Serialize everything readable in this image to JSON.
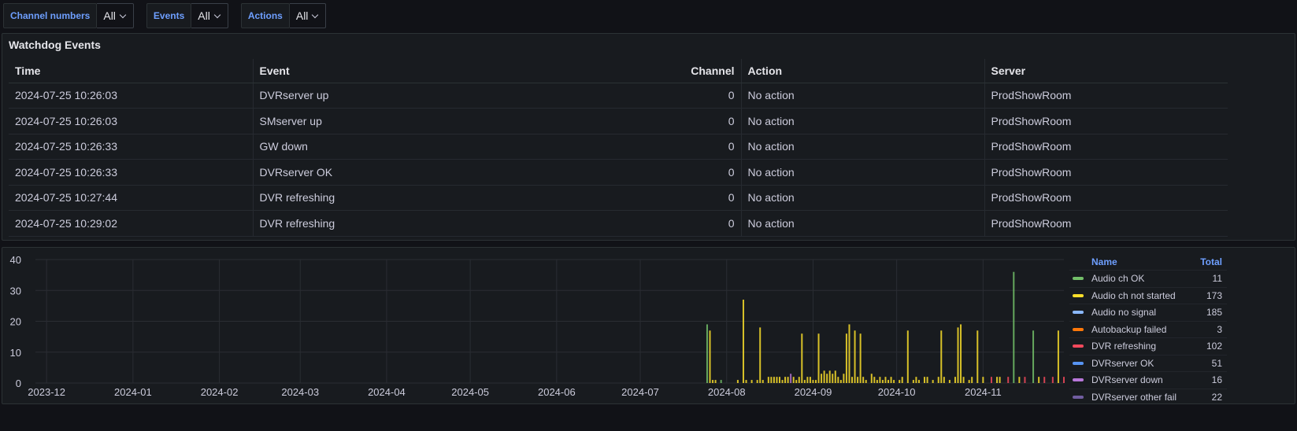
{
  "filters": [
    {
      "label": "Channel numbers",
      "value": "All"
    },
    {
      "label": "Events",
      "value": "All"
    },
    {
      "label": "Actions",
      "value": "All"
    }
  ],
  "table_panel": {
    "title": "Watchdog Events",
    "columns": [
      "Time",
      "Event",
      "Channel",
      "Action",
      "Server"
    ],
    "rows": [
      [
        "2024-07-25 10:26:03",
        "DVRserver up",
        "0",
        "No action",
        "ProdShowRoom"
      ],
      [
        "2024-07-25 10:26:03",
        "SMserver up",
        "0",
        "No action",
        "ProdShowRoom"
      ],
      [
        "2024-07-25 10:26:33",
        "GW down",
        "0",
        "No action",
        "ProdShowRoom"
      ],
      [
        "2024-07-25 10:26:33",
        "DVRserver OK",
        "0",
        "No action",
        "ProdShowRoom"
      ],
      [
        "2024-07-25 10:27:44",
        "DVR refreshing",
        "0",
        "No action",
        "ProdShowRoom"
      ],
      [
        "2024-07-25 10:29:02",
        "DVR refreshing",
        "0",
        "No action",
        "ProdShowRoom"
      ]
    ]
  },
  "legend": {
    "name_header": "Name",
    "total_header": "Total",
    "items": [
      {
        "name": "Audio ch OK",
        "total": "11",
        "color": "#73bf69"
      },
      {
        "name": "Audio ch not started",
        "total": "173",
        "color": "#fade2a"
      },
      {
        "name": "Audio no signal",
        "total": "185",
        "color": "#8ab8ff"
      },
      {
        "name": "Autobackup failed",
        "total": "3",
        "color": "#ff780a"
      },
      {
        "name": "DVR refreshing",
        "total": "102",
        "color": "#f2495c"
      },
      {
        "name": "DVRserver OK",
        "total": "51",
        "color": "#5794f2"
      },
      {
        "name": "DVRserver down",
        "total": "16",
        "color": "#b877d9"
      },
      {
        "name": "DVRserver other fail",
        "total": "22",
        "color": "#705da0"
      }
    ]
  },
  "chart_data": {
    "type": "bar",
    "ylim": [
      0,
      40
    ],
    "y_ticks": [
      0,
      10,
      20,
      30,
      40
    ],
    "x_ticks": [
      "2023-12",
      "2024-01",
      "2024-02",
      "2024-03",
      "2024-04",
      "2024-05",
      "2024-06",
      "2024-07",
      "2024-08",
      "2024-09",
      "2024-10",
      "2024-11"
    ],
    "grid": true,
    "legend_position": "right",
    "x_range": [
      "2023-11-27",
      "2024-11-30"
    ],
    "bars": [
      {
        "date": "2024-07-25",
        "value": 19,
        "color": "#73bf69"
      },
      {
        "date": "2024-07-26",
        "value": 17,
        "color": "#fade2a"
      },
      {
        "date": "2024-07-27",
        "value": 1,
        "color": "#fade2a"
      },
      {
        "date": "2024-07-28",
        "value": 1,
        "color": "#fade2a"
      },
      {
        "date": "2024-07-30",
        "value": 1,
        "color": "#73bf69"
      },
      {
        "date": "2024-08-05",
        "value": 1,
        "color": "#fade2a"
      },
      {
        "date": "2024-08-07",
        "value": 27,
        "color": "#fade2a"
      },
      {
        "date": "2024-08-08",
        "value": 1,
        "color": "#fade2a"
      },
      {
        "date": "2024-08-10",
        "value": 1,
        "color": "#fade2a"
      },
      {
        "date": "2024-08-12",
        "value": 1,
        "color": "#fade2a"
      },
      {
        "date": "2024-08-13",
        "value": 18,
        "color": "#fade2a"
      },
      {
        "date": "2024-08-14",
        "value": 1,
        "color": "#fade2a"
      },
      {
        "date": "2024-08-16",
        "value": 2,
        "color": "#fade2a"
      },
      {
        "date": "2024-08-17",
        "value": 2,
        "color": "#fade2a"
      },
      {
        "date": "2024-08-18",
        "value": 2,
        "color": "#fade2a"
      },
      {
        "date": "2024-08-19",
        "value": 2,
        "color": "#fade2a"
      },
      {
        "date": "2024-08-20",
        "value": 2,
        "color": "#fade2a"
      },
      {
        "date": "2024-08-21",
        "value": 1,
        "color": "#fade2a"
      },
      {
        "date": "2024-08-22",
        "value": 2,
        "color": "#fade2a"
      },
      {
        "date": "2024-08-23",
        "value": 2,
        "color": "#fade2a"
      },
      {
        "date": "2024-08-24",
        "value": 3,
        "color": "#b877d9"
      },
      {
        "date": "2024-08-25",
        "value": 2,
        "color": "#fade2a"
      },
      {
        "date": "2024-08-26",
        "value": 1,
        "color": "#fade2a"
      },
      {
        "date": "2024-08-27",
        "value": 2,
        "color": "#fade2a"
      },
      {
        "date": "2024-08-28",
        "value": 16,
        "color": "#fade2a"
      },
      {
        "date": "2024-08-29",
        "value": 1,
        "color": "#fade2a"
      },
      {
        "date": "2024-08-30",
        "value": 2,
        "color": "#fade2a"
      },
      {
        "date": "2024-08-31",
        "value": 2,
        "color": "#fade2a"
      },
      {
        "date": "2024-09-01",
        "value": 1,
        "color": "#fade2a"
      },
      {
        "date": "2024-09-02",
        "value": 1,
        "color": "#fade2a"
      },
      {
        "date": "2024-09-03",
        "value": 16,
        "color": "#fade2a"
      },
      {
        "date": "2024-09-04",
        "value": 3,
        "color": "#fade2a"
      },
      {
        "date": "2024-09-05",
        "value": 4,
        "color": "#fade2a"
      },
      {
        "date": "2024-09-06",
        "value": 3,
        "color": "#fade2a"
      },
      {
        "date": "2024-09-07",
        "value": 4,
        "color": "#fade2a"
      },
      {
        "date": "2024-09-08",
        "value": 3,
        "color": "#fade2a"
      },
      {
        "date": "2024-09-09",
        "value": 4,
        "color": "#fade2a"
      },
      {
        "date": "2024-09-10",
        "value": 2,
        "color": "#fade2a"
      },
      {
        "date": "2024-09-11",
        "value": 1,
        "color": "#fade2a"
      },
      {
        "date": "2024-09-12",
        "value": 3,
        "color": "#fade2a"
      },
      {
        "date": "2024-09-13",
        "value": 16,
        "color": "#fade2a"
      },
      {
        "date": "2024-09-14",
        "value": 19,
        "color": "#fade2a"
      },
      {
        "date": "2024-09-15",
        "value": 2,
        "color": "#fade2a"
      },
      {
        "date": "2024-09-16",
        "value": 17,
        "color": "#fade2a"
      },
      {
        "date": "2024-09-17",
        "value": 2,
        "color": "#fade2a"
      },
      {
        "date": "2024-09-18",
        "value": 16,
        "color": "#fade2a"
      },
      {
        "date": "2024-09-19",
        "value": 2,
        "color": "#fade2a"
      },
      {
        "date": "2024-09-20",
        "value": 1,
        "color": "#fade2a"
      },
      {
        "date": "2024-09-22",
        "value": 3,
        "color": "#fade2a"
      },
      {
        "date": "2024-09-23",
        "value": 2,
        "color": "#fade2a"
      },
      {
        "date": "2024-09-24",
        "value": 1,
        "color": "#fade2a"
      },
      {
        "date": "2024-09-25",
        "value": 2,
        "color": "#fade2a"
      },
      {
        "date": "2024-09-26",
        "value": 1,
        "color": "#fade2a"
      },
      {
        "date": "2024-09-27",
        "value": 2,
        "color": "#fade2a"
      },
      {
        "date": "2024-09-28",
        "value": 1,
        "color": "#fade2a"
      },
      {
        "date": "2024-09-29",
        "value": 2,
        "color": "#fade2a"
      },
      {
        "date": "2024-09-30",
        "value": 1,
        "color": "#fade2a"
      },
      {
        "date": "2024-10-02",
        "value": 1,
        "color": "#fade2a"
      },
      {
        "date": "2024-10-03",
        "value": 2,
        "color": "#fade2a"
      },
      {
        "date": "2024-10-05",
        "value": 17,
        "color": "#fade2a"
      },
      {
        "date": "2024-10-07",
        "value": 1,
        "color": "#fade2a"
      },
      {
        "date": "2024-10-08",
        "value": 2,
        "color": "#fade2a"
      },
      {
        "date": "2024-10-09",
        "value": 1,
        "color": "#fade2a"
      },
      {
        "date": "2024-10-11",
        "value": 2,
        "color": "#fade2a"
      },
      {
        "date": "2024-10-12",
        "value": 2,
        "color": "#fade2a"
      },
      {
        "date": "2024-10-14",
        "value": 1,
        "color": "#fade2a"
      },
      {
        "date": "2024-10-16",
        "value": 2,
        "color": "#fade2a"
      },
      {
        "date": "2024-10-17",
        "value": 17,
        "color": "#fade2a"
      },
      {
        "date": "2024-10-18",
        "value": 2,
        "color": "#fade2a"
      },
      {
        "date": "2024-10-20",
        "value": 1,
        "color": "#fade2a"
      },
      {
        "date": "2024-10-22",
        "value": 2,
        "color": "#fade2a"
      },
      {
        "date": "2024-10-23",
        "value": 18,
        "color": "#fade2a"
      },
      {
        "date": "2024-10-24",
        "value": 19,
        "color": "#fade2a"
      },
      {
        "date": "2024-10-25",
        "value": 2,
        "color": "#fade2a"
      },
      {
        "date": "2024-10-27",
        "value": 1,
        "color": "#fade2a"
      },
      {
        "date": "2024-10-28",
        "value": 2,
        "color": "#fade2a"
      },
      {
        "date": "2024-10-30",
        "value": 17,
        "color": "#fade2a"
      },
      {
        "date": "2024-11-01",
        "value": 2,
        "color": "#fade2a"
      },
      {
        "date": "2024-11-04",
        "value": 2,
        "color": "#f2495c"
      },
      {
        "date": "2024-11-06",
        "value": 2,
        "color": "#fade2a"
      },
      {
        "date": "2024-11-07",
        "value": 2,
        "color": "#fade2a"
      },
      {
        "date": "2024-11-10",
        "value": 2,
        "color": "#f2495c"
      },
      {
        "date": "2024-11-12",
        "value": 36,
        "color": "#73bf69"
      },
      {
        "date": "2024-11-14",
        "value": 2,
        "color": "#fade2a"
      },
      {
        "date": "2024-11-16",
        "value": 2,
        "color": "#f2495c"
      },
      {
        "date": "2024-11-19",
        "value": 17,
        "color": "#73bf69"
      },
      {
        "date": "2024-11-21",
        "value": 2,
        "color": "#fade2a"
      },
      {
        "date": "2024-11-23",
        "value": 2,
        "color": "#f2495c"
      },
      {
        "date": "2024-11-26",
        "value": 2,
        "color": "#f2495c"
      },
      {
        "date": "2024-11-28",
        "value": 17,
        "color": "#fade2a"
      },
      {
        "date": "2024-11-30",
        "value": 2,
        "color": "#f2495c"
      }
    ]
  }
}
